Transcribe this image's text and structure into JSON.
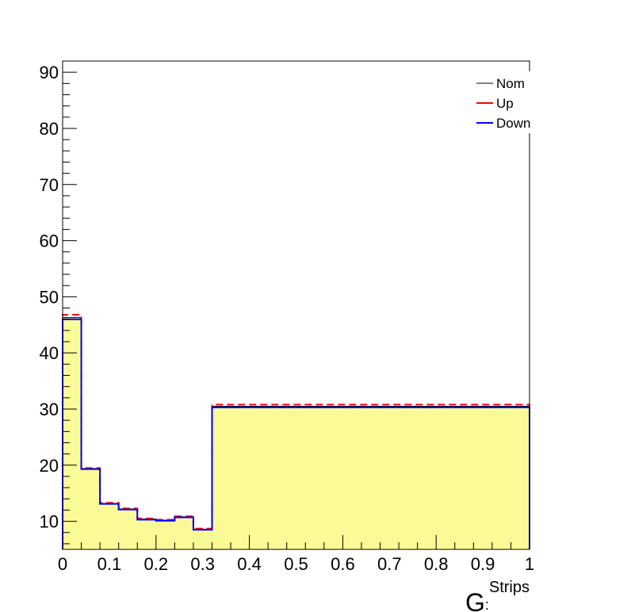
{
  "chart_data": {
    "type": "step",
    "xlim": [
      0,
      1
    ],
    "ylim": [
      5,
      92
    ],
    "x_ticks": [
      "0",
      "0.1",
      "0.2",
      "0.3",
      "0.4",
      "0.5",
      "0.6",
      "0.7",
      "0.8",
      "0.9",
      "1"
    ],
    "y_ticks": [
      "10",
      "20",
      "30",
      "40",
      "50",
      "60",
      "70",
      "80",
      "90"
    ],
    "xlabel_main": "G",
    "xlabel_sup": "Strips",
    "xlabel_sub": ":",
    "bin_edges": [
      0,
      0.04,
      0.08,
      0.12,
      0.16,
      0.2,
      0.24,
      0.28,
      0.32,
      1
    ],
    "series": [
      {
        "name": "Nom",
        "color": "#000000",
        "fill": "#fafa96",
        "values": [
          46.3,
          19.4,
          13.2,
          12.2,
          10.4,
          10.2,
          10.8,
          8.6,
          30.5
        ]
      },
      {
        "name": "Up",
        "color": "#ff0000",
        "dashed": true,
        "values": [
          46.8,
          19.5,
          13.3,
          12.3,
          10.5,
          10.3,
          10.9,
          8.7,
          30.8
        ]
      },
      {
        "name": "Down",
        "color": "#0000ff",
        "values": [
          46.0,
          19.3,
          13.1,
          12.1,
          10.3,
          10.1,
          10.7,
          8.5,
          30.3
        ]
      }
    ],
    "legend": [
      {
        "label": "Nom",
        "color": "#000000"
      },
      {
        "label": "Up",
        "color": "#ff0000"
      },
      {
        "label": "Down",
        "color": "#0000ff"
      }
    ],
    "legend_position": "top-right",
    "grid": false
  }
}
